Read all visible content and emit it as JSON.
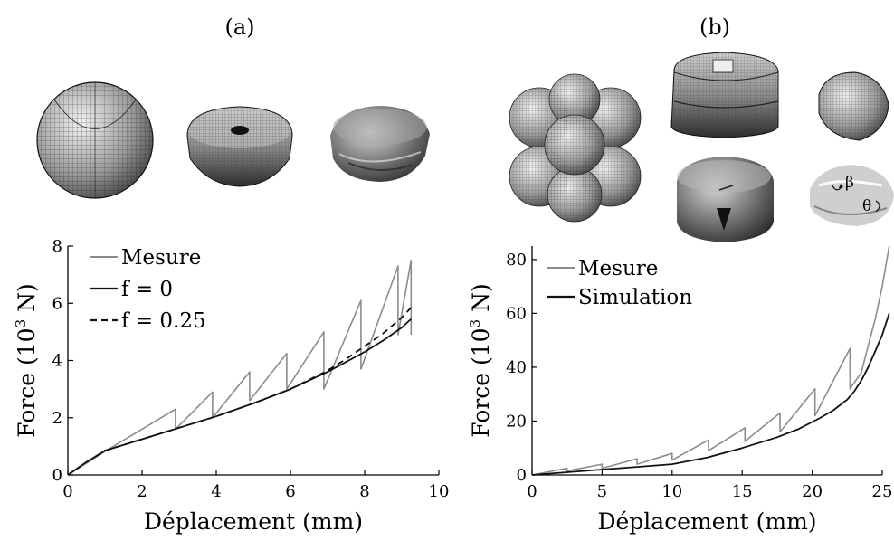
{
  "panels": [
    {
      "label": "(a)",
      "images": [
        "meshed-sphere",
        "deformed-sphere-mesh",
        "crushed-sphere-photo"
      ],
      "chart_data": {
        "type": "line",
        "xlabel": "Déplacement (mm)",
        "ylabel_main": "Force (10",
        "ylabel_sup": "3",
        "ylabel_tail": " N)",
        "xlim": [
          0,
          10
        ],
        "ylim": [
          0,
          8
        ],
        "xticks": [
          0,
          2,
          4,
          6,
          8,
          10
        ],
        "yticks": [
          0,
          2,
          4,
          6,
          8
        ],
        "grid": false,
        "legend_position": "top-left",
        "series": [
          {
            "name": "Mesure",
            "color": "#8c8c8c",
            "dash": "none",
            "width": 1.6,
            "x": [
              0,
              1.1,
              2.9,
              2.9,
              3.9,
              3.9,
              4.9,
              4.9,
              5.9,
              5.9,
              6.9,
              6.9,
              7.9,
              7.9,
              8.9,
              8.9,
              9.25,
              9.25
            ],
            "y": [
              0,
              0.9,
              2.3,
              1.6,
              2.9,
              2.0,
              3.6,
              2.6,
              4.25,
              3.0,
              5.0,
              3.0,
              6.1,
              3.7,
              7.3,
              4.9,
              7.5,
              4.9
            ]
          },
          {
            "name": "f = 0",
            "color": "#111111",
            "dash": "none",
            "width": 1.8,
            "x": [
              0,
              0.5,
              1,
              2,
              3,
              4,
              5,
              6,
              7,
              7.5,
              8,
              8.5,
              9,
              9.25
            ],
            "y": [
              0,
              0.45,
              0.85,
              1.25,
              1.65,
              2.05,
              2.5,
              3.0,
              3.6,
              3.95,
              4.3,
              4.7,
              5.15,
              5.45
            ]
          },
          {
            "name": "f = 0.25",
            "color": "#111111",
            "dash": "7,5",
            "width": 1.8,
            "x": [
              0,
              0.5,
              1,
              2,
              3,
              4,
              5,
              6,
              7,
              7.5,
              8,
              8.5,
              9,
              9.25
            ],
            "y": [
              0,
              0.45,
              0.85,
              1.25,
              1.65,
              2.05,
              2.5,
              3.0,
              3.65,
              4.05,
              4.5,
              4.95,
              5.5,
              5.85
            ]
          }
        ]
      }
    },
    {
      "label": "(b)",
      "images": [
        "sphere-cluster-mesh",
        "compressed-cluster-mesh",
        "single-deformed-sphere-mesh",
        "compressed-cluster-photo",
        "single-particle-photo"
      ],
      "annotations": [
        "β",
        "θ"
      ],
      "chart_data": {
        "type": "line",
        "xlabel": "Déplacement (mm)",
        "ylabel_main": "Force (10",
        "ylabel_sup": "3",
        "ylabel_tail": " N)",
        "xlim": [
          0,
          25
        ],
        "ylim": [
          0,
          85
        ],
        "xticks": [
          0,
          5,
          10,
          15,
          20,
          25
        ],
        "yticks": [
          0,
          20,
          40,
          60,
          80
        ],
        "grid": false,
        "legend_position": "top-left",
        "series": [
          {
            "name": "Mesure",
            "color": "#8c8c8c",
            "dash": "none",
            "width": 1.6,
            "x": [
              0,
              2.5,
              2.5,
              5,
              5,
              7.5,
              7.5,
              10,
              10,
              12.6,
              12.6,
              15.2,
              15.2,
              17.7,
              17.7,
              20.2,
              20.2,
              22.7,
              22.7,
              23.5,
              24,
              24.5,
              25,
              25.5
            ],
            "y": [
              0,
              2.5,
              1.5,
              4,
              2.5,
              6,
              4,
              8,
              5.5,
              13,
              9,
              17.5,
              12.5,
              23,
              16,
              32,
              22,
              47,
              32,
              38,
              48,
              58,
              70,
              85
            ]
          },
          {
            "name": "Simulation",
            "color": "#111111",
            "dash": "none",
            "width": 1.8,
            "x": [
              0,
              2.5,
              5,
              7.5,
              10,
              12.5,
              15,
              17.5,
              19,
              20.5,
              21.5,
              22.5,
              23,
              23.5,
              24,
              24.5,
              25,
              25.5
            ],
            "y": [
              0,
              1,
              2,
              3,
              4,
              6.5,
              10,
              14,
              17,
              21,
              24,
              28,
              31,
              35,
              40,
              46,
              52,
              60
            ]
          }
        ]
      }
    }
  ]
}
